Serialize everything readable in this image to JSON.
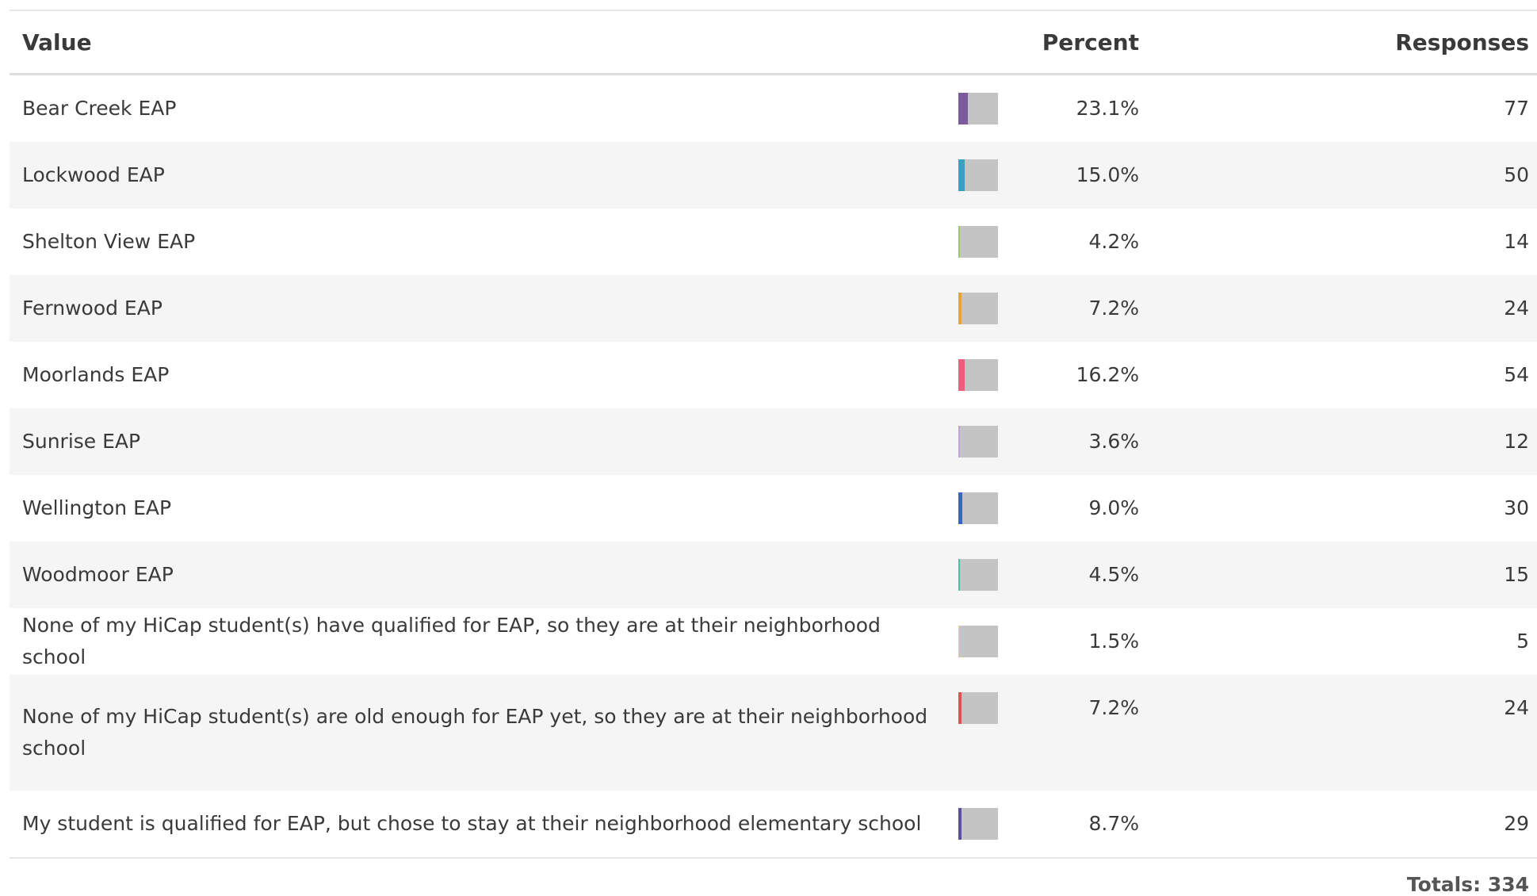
{
  "table": {
    "headers": [
      "Value",
      "Percent",
      "Responses"
    ],
    "rows": [
      {
        "value": "Bear Creek EAP",
        "percent": {
          "value": 23.1,
          "label": "23.1%"
        },
        "responses": 77,
        "color": "#7a5c9e"
      },
      {
        "value": "Lockwood EAP",
        "percent": {
          "value": 15.0,
          "label": "15.0%"
        },
        "responses": 50,
        "color": "#3a9fc0"
      },
      {
        "value": "Shelton View EAP",
        "percent": {
          "value": 4.2,
          "label": "4.2%"
        },
        "responses": 14,
        "color": "#9ccc5a"
      },
      {
        "value": "Fernwood EAP",
        "percent": {
          "value": 7.2,
          "label": "7.2%"
        },
        "responses": 24,
        "color": "#f0a030"
      },
      {
        "value": "Moorlands EAP",
        "percent": {
          "value": 16.2,
          "label": "16.2%"
        },
        "responses": 54,
        "color": "#e8607e"
      },
      {
        "value": "Sunrise EAP",
        "percent": {
          "value": 3.6,
          "label": "3.6%"
        },
        "responses": 12,
        "color": "#c2a2da"
      },
      {
        "value": "Wellington EAP",
        "percent": {
          "value": 9.0,
          "label": "9.0%"
        },
        "responses": 30,
        "color": "#3a64c4"
      },
      {
        "value": "Woodmoor EAP",
        "percent": {
          "value": 4.5,
          "label": "4.5%"
        },
        "responses": 15,
        "color": "#3cc8a0"
      },
      {
        "value": "None of my HiCap student(s) have qualified for EAP, so they are at their neighborhood school",
        "percent": {
          "value": 1.5,
          "label": "1.5%"
        },
        "responses": 5,
        "color": "#f0d060"
      },
      {
        "value": "None of my HiCap student(s) are old enough for EAP yet, so they are at their neighborhood school",
        "percent": {
          "value": 7.2,
          "label": "7.2%"
        },
        "responses": 24,
        "color": "#e05050"
      },
      {
        "value": "My student is qualified for EAP, but chose to stay at their neighborhood elementary school",
        "percent": {
          "value": 8.7,
          "label": "8.7%"
        },
        "responses": 29,
        "color": "#5a4ea0"
      }
    ],
    "totals_label": "Totals:",
    "totals": 334
  }
}
